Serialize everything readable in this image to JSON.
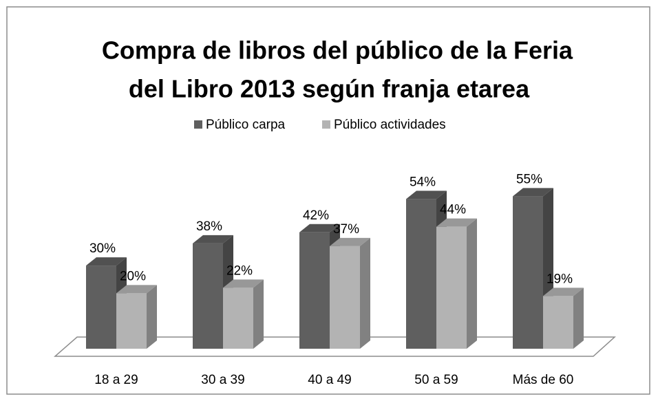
{
  "chart_data": {
    "type": "bar3d",
    "title": [
      "Compra de libros del público de la Feria",
      "del Libro 2013 según franja etarea"
    ],
    "categories": [
      "18 a 29",
      "30 a 39",
      "40 a 49",
      "50 a 59",
      "Más de 60"
    ],
    "series": [
      {
        "name": "Público carpa",
        "color": "#5f5f5f",
        "values": [
          30,
          38,
          42,
          54,
          55
        ],
        "value_labels": [
          "30%",
          "38%",
          "42%",
          "54%",
          "55%"
        ]
      },
      {
        "name": "Público actividades",
        "color": "#b3b3b3",
        "values": [
          20,
          22,
          37,
          44,
          19
        ],
        "value_labels": [
          "20%",
          "22%",
          "37%",
          "44%",
          "19%"
        ]
      }
    ],
    "legend": "top"
  }
}
